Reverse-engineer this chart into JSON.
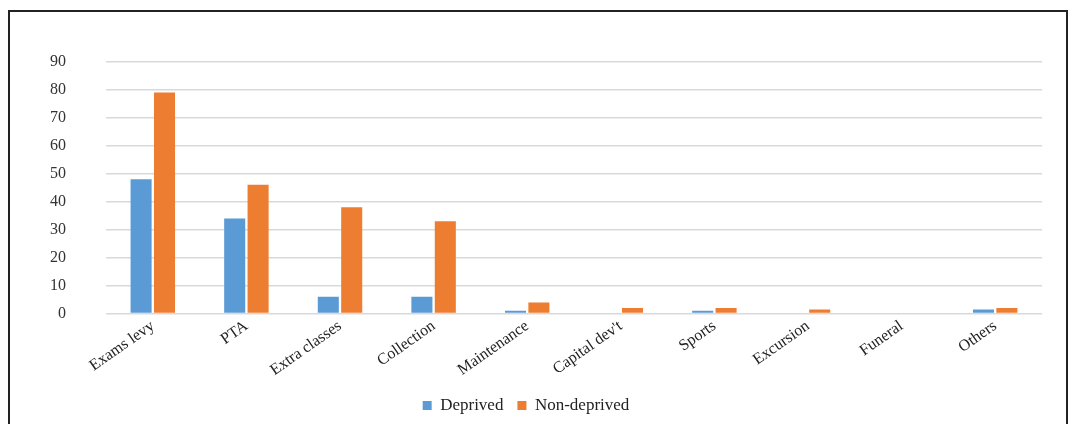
{
  "chart_data": {
    "type": "bar",
    "categories": [
      "Exams levy",
      "PTA",
      "Extra classes",
      "Collection",
      "Maintenance",
      "Capital dev't",
      "Sports",
      "Excursion",
      "Funeral",
      "Others"
    ],
    "series": [
      {
        "name": "Deprived",
        "color": "#5b9bd5",
        "values": [
          48,
          34,
          6,
          6,
          1,
          0,
          1,
          0,
          0,
          1.5
        ]
      },
      {
        "name": "Non-deprived",
        "color": "#ed7d31",
        "values": [
          79,
          46,
          38,
          33,
          4,
          2,
          2,
          1.5,
          0,
          2
        ]
      }
    ],
    "ylim": [
      0,
      90
    ],
    "yticks": [
      0,
      10,
      20,
      30,
      40,
      50,
      60,
      70,
      80,
      90
    ],
    "grid": "y",
    "legend": "bottom"
  }
}
